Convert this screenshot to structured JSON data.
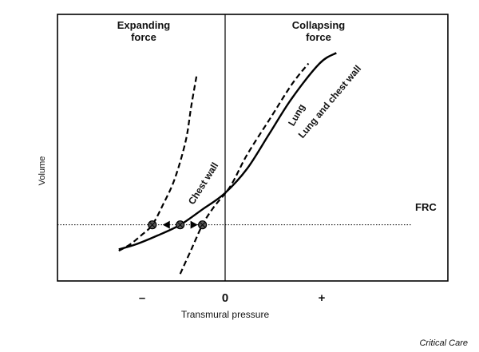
{
  "chart_data": {
    "type": "line",
    "xlabel": "Transmural pressure",
    "ylabel": "Volume",
    "x_ticks": [
      "–",
      "0",
      "+"
    ],
    "xlim": [
      -11,
      24
    ],
    "ylim": [
      -8,
      30
    ],
    "region_labels": {
      "left_line1": "Expanding",
      "left_line2": "force",
      "right_line1": "Collapsing",
      "right_line2": "force"
    },
    "reference_line": {
      "label": "FRC",
      "y": 0
    },
    "series": [
      {
        "name": "Chest wall",
        "style": "dashed",
        "x": [
          -5.5,
          -4.5,
          -3.5,
          -2.5,
          -1.5,
          -0.5,
          0.5,
          1.0,
          1.5
        ],
        "y": [
          -3.7,
          -2.8,
          -1.5,
          0.0,
          3.0,
          6.5,
          12.0,
          17.0,
          21.5
        ]
      },
      {
        "name": "Lung",
        "style": "dashed",
        "x": [
          0.0,
          1.0,
          2.0,
          3.0,
          4.5,
          6.0,
          8.0,
          10.0,
          11.5
        ],
        "y": [
          -7.0,
          -3.5,
          0.0,
          2.5,
          5.5,
          10.0,
          15.0,
          20.0,
          23.0
        ]
      },
      {
        "name": "Lung and chest wall",
        "style": "solid",
        "x": [
          -5.5,
          -4.0,
          -2.0,
          0.0,
          2.0,
          4.0,
          6.0,
          8.0,
          10.0,
          12.5,
          14.0
        ],
        "y": [
          -3.5,
          -2.8,
          -1.5,
          0.0,
          2.2,
          4.5,
          8.0,
          13.0,
          18.0,
          23.0,
          24.5
        ]
      }
    ],
    "markers": [
      {
        "x": -2.5,
        "y": 0
      },
      {
        "x": 0,
        "y": 0
      },
      {
        "x": 2,
        "y": 0
      }
    ],
    "arrows": [
      {
        "from_x": -1.0,
        "to_x": -2.0,
        "y": 0
      },
      {
        "from_x": 1.0,
        "to_x": 2.0,
        "y": 0
      }
    ]
  },
  "credit": "Critical Care"
}
